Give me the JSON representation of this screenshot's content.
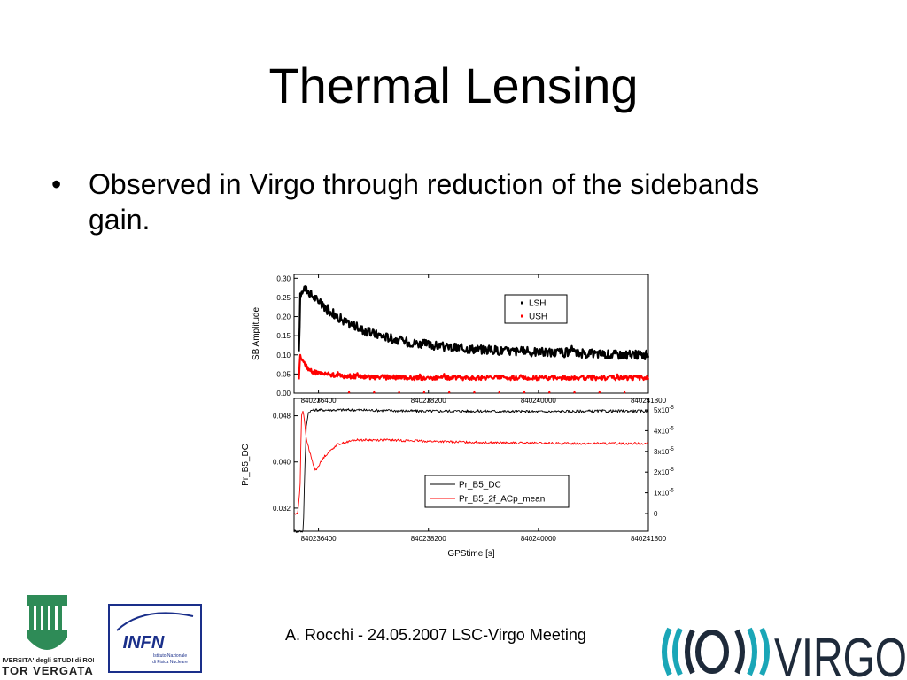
{
  "slide": {
    "title": "Thermal Lensing",
    "bullet_symbol": "•",
    "bullet_text": "Observed in Virgo through reduction of the sidebands gain.",
    "footer": "A. Rocchi - 24.05.2007 LSC-Virgo Meeting"
  },
  "logos": {
    "tor_vergata": {
      "line1": "UNIVERSITA' degli STUDI di ROMA",
      "line2": "TOR VERGATA",
      "color": "#2e8b57"
    },
    "infn": {
      "name": "INFN",
      "sub1": "Istituto Nazionale",
      "sub2": "di Fisica Nucleare",
      "color": "#1a2f8a"
    },
    "virgo": {
      "name": "VIRGO",
      "color": "#1e2a3a",
      "accent": "#1aa6b7"
    }
  },
  "chart_data": [
    {
      "type": "line",
      "ylabel": "SB Amplitude",
      "xlim": [
        840236000,
        840241800
      ],
      "ylim": [
        0.0,
        0.31
      ],
      "xticks": [
        "840236400",
        "840238200",
        "840240000",
        "840241800"
      ],
      "yticks": [
        "0.00",
        "0.05",
        "0.10",
        "0.15",
        "0.20",
        "0.25",
        "0.30"
      ],
      "legend_position": "top-right",
      "series": [
        {
          "name": "LSH",
          "color": "#000000",
          "x": [
            840236080,
            840236100,
            840236150,
            840236200,
            840236300,
            840236500,
            840236800,
            840237200,
            840237800,
            840238500,
            840239500,
            840240500,
            840241500,
            840241800
          ],
          "y": [
            0.1,
            0.25,
            0.275,
            0.27,
            0.255,
            0.225,
            0.19,
            0.16,
            0.135,
            0.12,
            0.11,
            0.105,
            0.1,
            0.1
          ]
        },
        {
          "name": "USH",
          "color": "#ff0000",
          "x": [
            840236080,
            840236100,
            840236130,
            840236200,
            840236300,
            840236500,
            840236800,
            840237200,
            840238000,
            840239000,
            840240000,
            840241000,
            840241800
          ],
          "y": [
            0.04,
            0.1,
            0.09,
            0.07,
            0.055,
            0.05,
            0.045,
            0.042,
            0.04,
            0.04,
            0.04,
            0.04,
            0.04
          ]
        }
      ]
    },
    {
      "type": "line",
      "ylabel": "Pr_B5_DC",
      "xlabel": "GPStime [s]",
      "xlim": [
        840236000,
        840241800
      ],
      "ylim": [
        0.028,
        0.051
      ],
      "xticks": [
        "840236400",
        "840238200",
        "840240000",
        "840241800"
      ],
      "yticks": [
        "0.032",
        "0.040",
        "0.048"
      ],
      "y2ticks": [
        "0",
        "1x10",
        "2x10",
        "3x10",
        "4x10",
        "5x10"
      ],
      "y2_exponent": "-5",
      "legend_position": "bottom-center",
      "series": [
        {
          "name": "Pr_B5_DC",
          "color": "#000000",
          "x": [
            840236000,
            840236150,
            840236180,
            840236200,
            840236230,
            840236300,
            840236500,
            840237000,
            840238000,
            840239000,
            840240000,
            840241000,
            840241800
          ],
          "y": [
            0.028,
            0.028,
            0.04,
            0.046,
            0.0485,
            0.049,
            0.049,
            0.049,
            0.0488,
            0.0488,
            0.0487,
            0.0488,
            0.0488
          ]
        },
        {
          "name": "Pr_B5_2f_ACp_mean",
          "color": "#ff0000",
          "x": [
            840236000,
            840236060,
            840236100,
            840236120,
            840236150,
            840236200,
            840236300,
            840236350,
            840236500,
            840236700,
            840237000,
            840237500,
            840238500,
            840239500,
            840240500,
            840241500,
            840241800
          ],
          "y": [
            0.031,
            0.031,
            0.036,
            0.048,
            0.049,
            0.044,
            0.04,
            0.0385,
            0.041,
            0.043,
            0.0438,
            0.0438,
            0.0435,
            0.0433,
            0.0432,
            0.0432,
            0.0432
          ]
        }
      ]
    }
  ]
}
